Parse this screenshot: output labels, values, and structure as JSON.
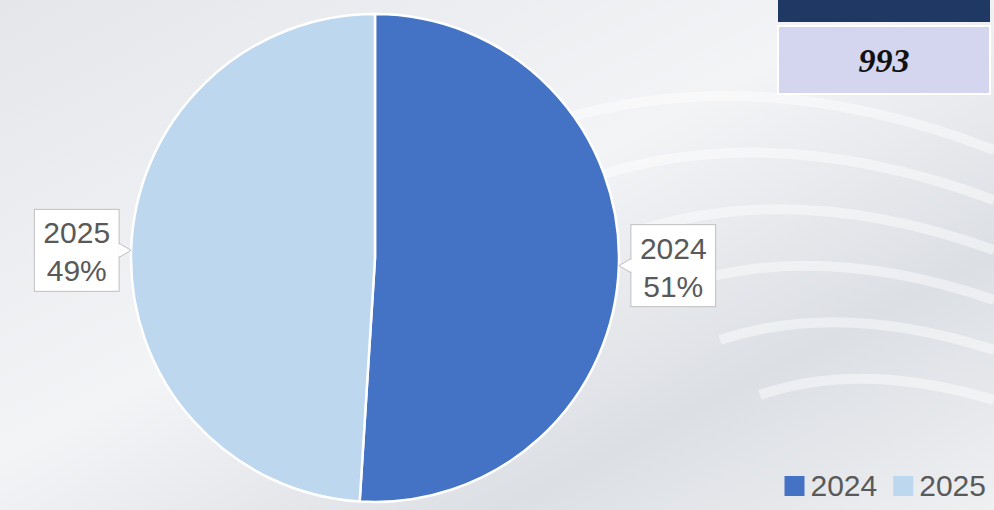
{
  "chart_data": {
    "type": "pie",
    "categories": [
      "2024",
      "2025"
    ],
    "values": [
      51,
      49
    ],
    "value_labels": [
      "51%",
      "49%"
    ],
    "colors": [
      "#4472c4",
      "#bdd7ee"
    ],
    "data_labels": true,
    "legend": "bottom-right",
    "annotations": [
      "993"
    ]
  }
}
